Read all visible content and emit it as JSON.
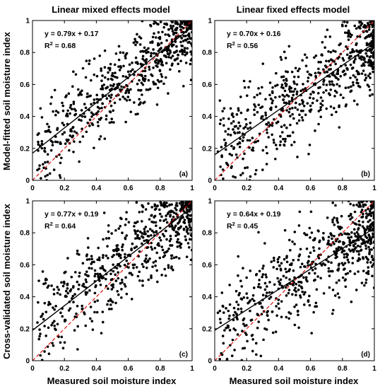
{
  "figure": {
    "col_titles": [
      "Linear mixed effects model",
      "Linear fixed effects model"
    ],
    "row_ylabels": [
      "Model-fitted soil moisture index",
      "Cross-validated soil moisture index"
    ],
    "xlabel": "Measured soil moisture index"
  },
  "chart_data": [
    {
      "type": "scatter",
      "panel_label": "(a)",
      "equation": "y = 0.79x + 0.17",
      "r2_label": "R",
      "r2_sup": "2",
      "r2_value": " = 0.68",
      "fit": {
        "slope": 0.79,
        "intercept": 0.17,
        "r2": 0.68
      },
      "xlim": [
        0,
        1
      ],
      "ylim": [
        0,
        1
      ],
      "xticks": [
        "0",
        "0.2",
        "0.4",
        "0.6",
        "0.8",
        "1"
      ],
      "yticks": [
        "0",
        "0.2",
        "0.4",
        "0.6",
        "0.8",
        "1"
      ],
      "reference_line": "1:1",
      "n_points": 620,
      "seed": 11,
      "noise": 0.13,
      "x": [
        0.05,
        0.12,
        0.2,
        0.3,
        0.42,
        0.5,
        0.6,
        0.7,
        0.8,
        0.9,
        0.98
      ],
      "y": [
        0.45,
        0.52,
        0.3,
        0.55,
        0.45,
        0.63,
        0.68,
        0.75,
        0.82,
        0.9,
        0.97
      ],
      "line_color": "#000000",
      "ref_color": "#dd1111"
    },
    {
      "type": "scatter",
      "panel_label": "(b)",
      "equation": "y = 0.70x + 0.16",
      "r2_label": "R",
      "r2_sup": "2",
      "r2_value": " = 0.56",
      "fit": {
        "slope": 0.7,
        "intercept": 0.16,
        "r2": 0.56
      },
      "xlim": [
        0,
        1
      ],
      "ylim": [
        0,
        1
      ],
      "xticks": [
        "0",
        "0.2",
        "0.4",
        "0.6",
        "0.8",
        "1"
      ],
      "yticks": [
        "0",
        "0.2",
        "0.4",
        "0.6",
        "0.8",
        "1"
      ],
      "reference_line": "1:1",
      "n_points": 620,
      "seed": 23,
      "noise": 0.14,
      "x": [
        0.02,
        0.1,
        0.22,
        0.3,
        0.45,
        0.55,
        0.62,
        0.72,
        0.82,
        0.9,
        0.99
      ],
      "y": [
        0.18,
        0.45,
        0.25,
        0.4,
        0.6,
        0.48,
        0.55,
        0.65,
        0.72,
        0.78,
        0.9
      ],
      "line_color": "#000000",
      "ref_color": "#dd1111"
    },
    {
      "type": "scatter",
      "panel_label": "(c)",
      "equation": "y = 0.77x + 0.19",
      "r2_label": "R",
      "r2_sup": "2",
      "r2_value": " = 0.64",
      "fit": {
        "slope": 0.77,
        "intercept": 0.19,
        "r2": 0.64
      },
      "xlim": [
        0,
        1
      ],
      "ylim": [
        0,
        1
      ],
      "xticks": [
        "0",
        "0.2",
        "0.4",
        "0.6",
        "0.8",
        "1"
      ],
      "yticks": [
        "0",
        "0.2",
        "0.4",
        "0.6",
        "0.8",
        "1"
      ],
      "reference_line": "1:1",
      "n_points": 620,
      "seed": 37,
      "noise": 0.14,
      "x": [
        0.04,
        0.1,
        0.2,
        0.32,
        0.42,
        0.5,
        0.62,
        0.7,
        0.8,
        0.9,
        0.98
      ],
      "y": [
        0.5,
        0.35,
        0.55,
        0.48,
        0.5,
        0.65,
        0.7,
        0.75,
        0.83,
        0.92,
        0.96
      ],
      "line_color": "#000000",
      "ref_color": "#dd1111"
    },
    {
      "type": "scatter",
      "panel_label": "(d)",
      "equation": "y = 0.64x + 0.19",
      "r2_label": "R",
      "r2_sup": "2",
      "r2_value": " = 0.45",
      "fit": {
        "slope": 0.64,
        "intercept": 0.19,
        "r2": 0.45
      },
      "xlim": [
        0,
        1
      ],
      "ylim": [
        0,
        1
      ],
      "xticks": [
        "0",
        "0.2",
        "0.4",
        "0.6",
        "0.8",
        "1"
      ],
      "yticks": [
        "0",
        "0.2",
        "0.4",
        "0.6",
        "0.8",
        "1"
      ],
      "reference_line": "1:1",
      "n_points": 620,
      "seed": 53,
      "noise": 0.16,
      "x": [
        0.02,
        0.12,
        0.2,
        0.3,
        0.4,
        0.5,
        0.6,
        0.7,
        0.8,
        0.9,
        0.99
      ],
      "y": [
        0.3,
        0.2,
        0.42,
        0.38,
        0.45,
        0.52,
        0.6,
        0.63,
        0.7,
        0.78,
        0.85
      ],
      "line_color": "#000000",
      "ref_color": "#dd1111"
    }
  ]
}
